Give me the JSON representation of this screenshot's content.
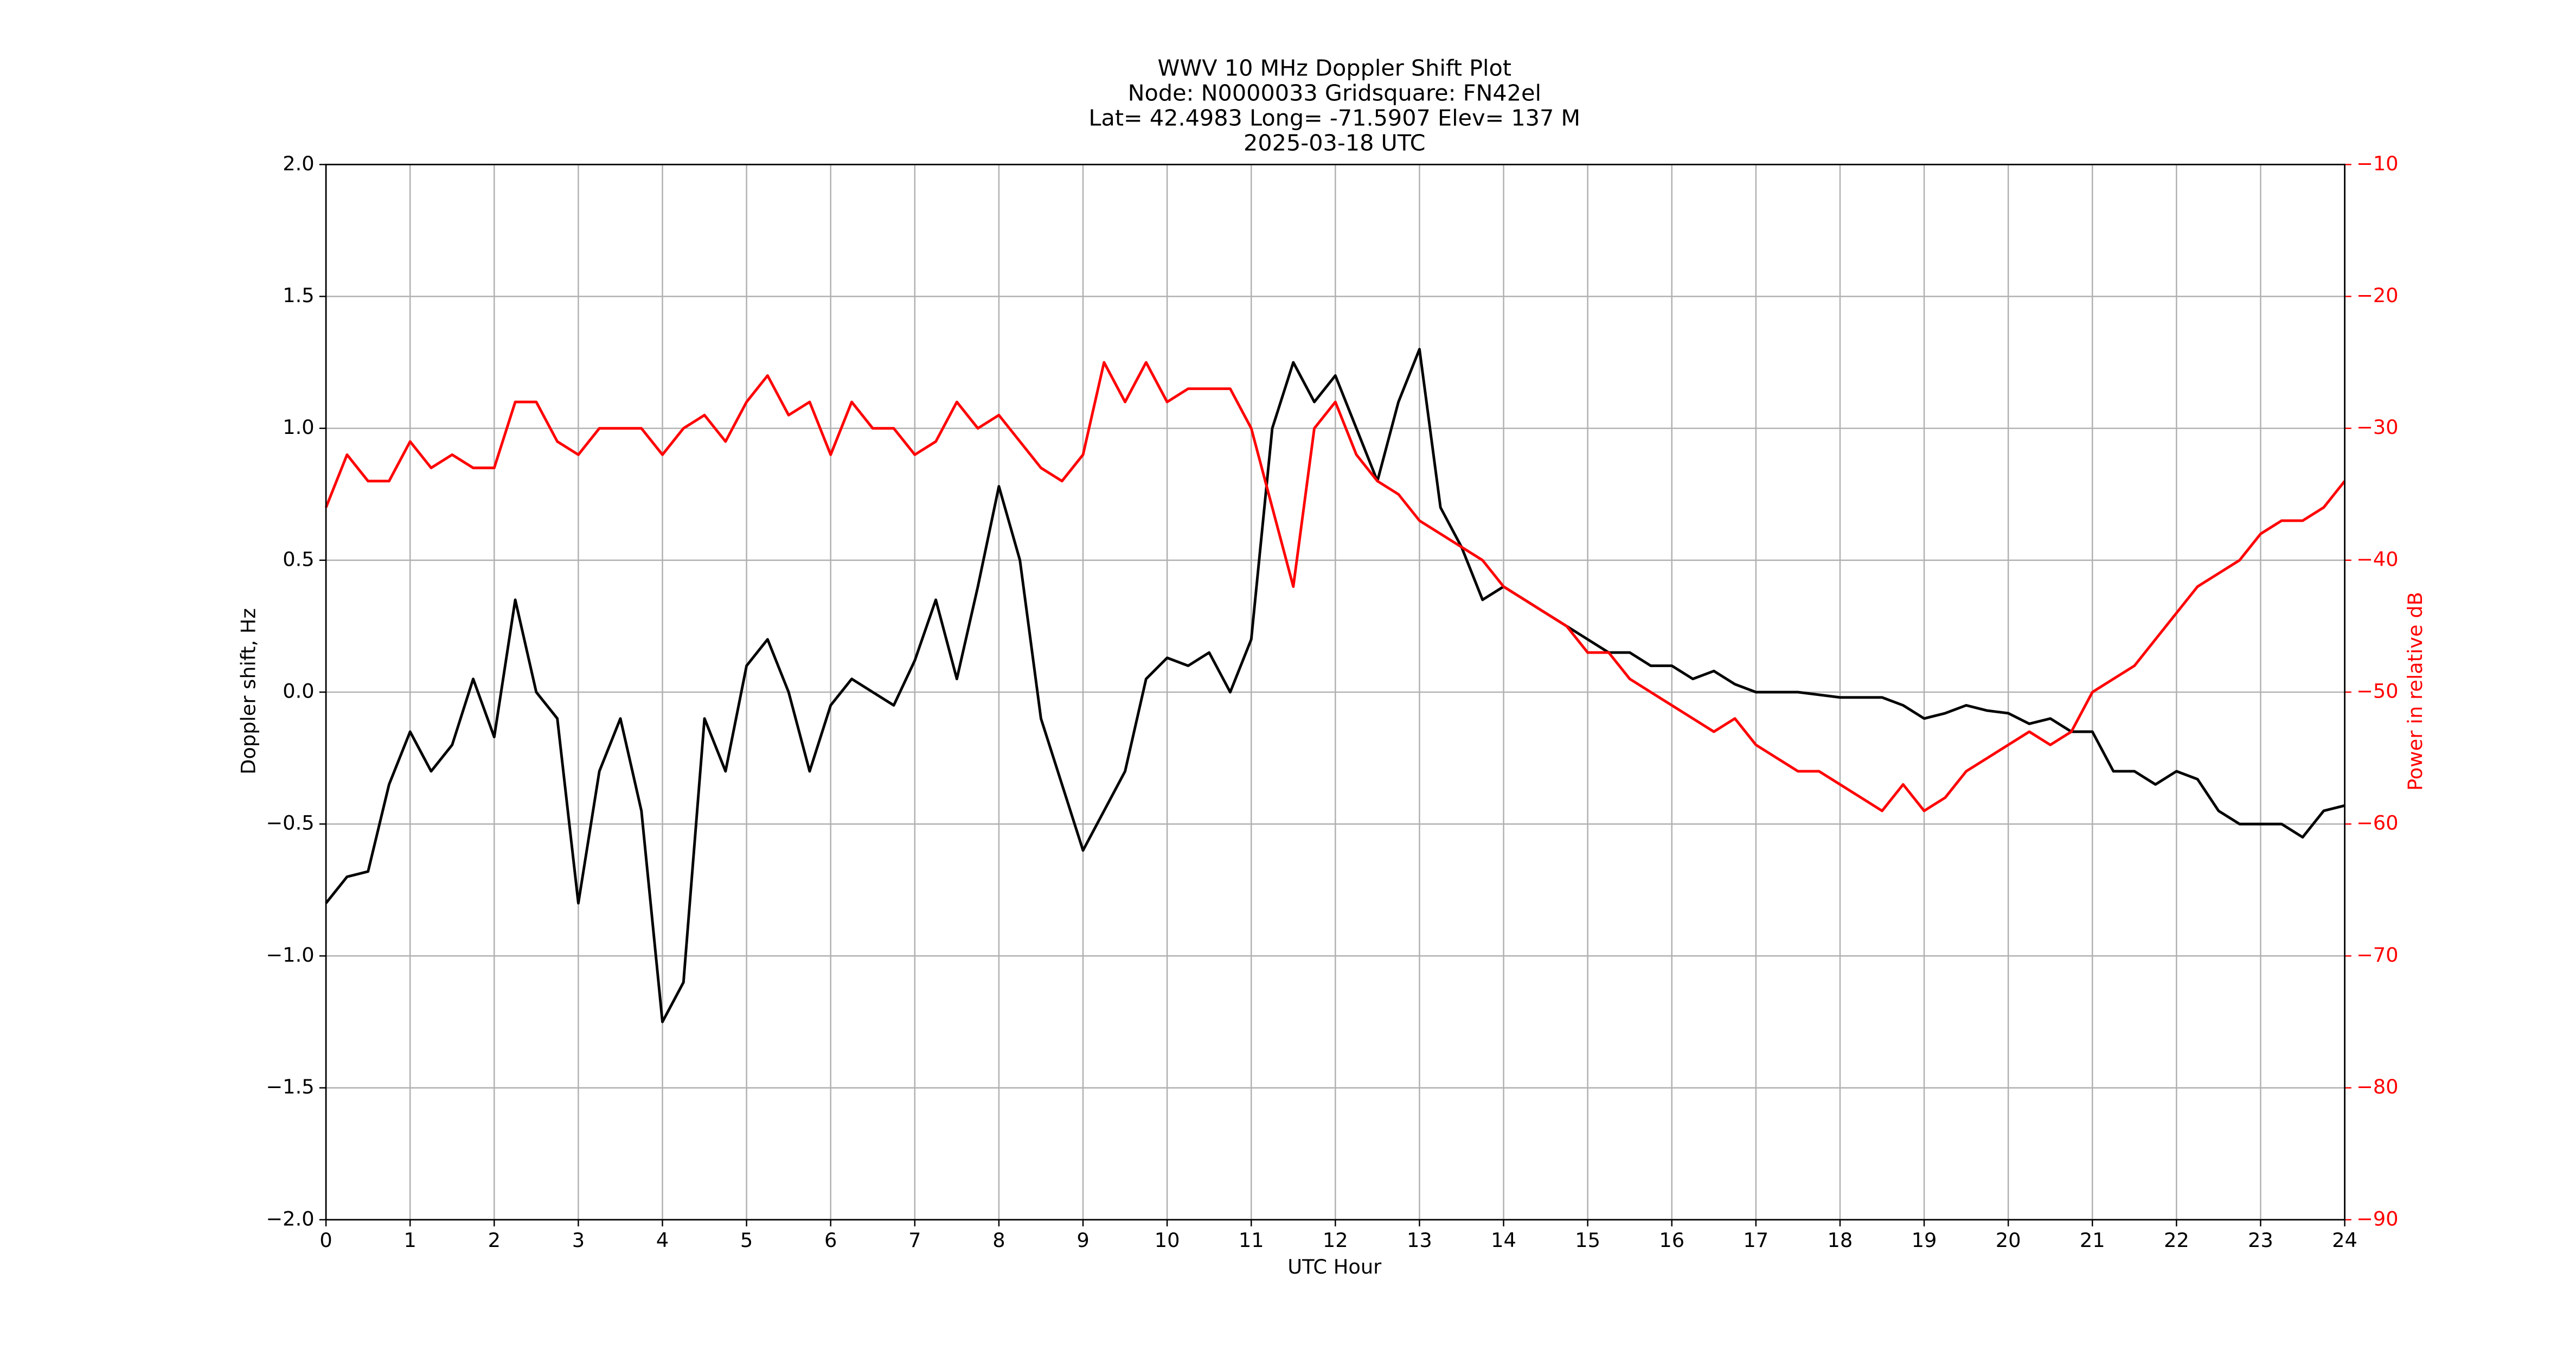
{
  "chart_data": {
    "type": "line",
    "title": [
      "WWV 10 MHz Doppler Shift Plot",
      "Node:  N0000033     Gridsquare:  FN42el",
      "Lat= 42.4983    Long= -71.5907    Elev= 137 M",
      "2025-03-18  UTC"
    ],
    "xlabel": "UTC Hour",
    "ylabel": "Doppler shift, Hz",
    "y2label": "Power in relative dB",
    "grid": true,
    "x": [
      0,
      0.25,
      0.5,
      0.75,
      1,
      1.25,
      1.5,
      1.75,
      2,
      2.25,
      2.5,
      2.75,
      3,
      3.25,
      3.5,
      3.75,
      4,
      4.25,
      4.5,
      4.75,
      5,
      5.25,
      5.5,
      5.75,
      6,
      6.25,
      6.5,
      6.75,
      7,
      7.25,
      7.5,
      7.75,
      8,
      8.25,
      8.5,
      8.75,
      9,
      9.25,
      9.5,
      9.75,
      10,
      10.25,
      10.5,
      10.75,
      11,
      11.25,
      11.5,
      11.75,
      12,
      12.25,
      12.5,
      12.75,
      13,
      13.25,
      13.5,
      13.75,
      14,
      14.25,
      14.5,
      14.75,
      15,
      15.25,
      15.5,
      15.75,
      16,
      16.25,
      16.5,
      16.75,
      17,
      17.25,
      17.5,
      17.75,
      18,
      18.25,
      18.5,
      18.75,
      19,
      19.25,
      19.5,
      19.75,
      20,
      20.25,
      20.5,
      20.75,
      21,
      21.25,
      21.5,
      21.75,
      22,
      22.25,
      22.5,
      22.75,
      23,
      23.25,
      23.5,
      23.75,
      24
    ],
    "series": [
      {
        "color": "#000000",
        "axis": "y",
        "values": [
          -0.8,
          -0.7,
          -0.68,
          -0.35,
          -0.15,
          -0.3,
          -0.2,
          0.05,
          -0.17,
          0.35,
          0.0,
          -0.1,
          -0.8,
          -0.3,
          -0.1,
          -0.45,
          -1.25,
          -1.1,
          -0.1,
          -0.3,
          0.1,
          0.2,
          0.0,
          -0.3,
          -0.05,
          0.05,
          0.0,
          -0.05,
          0.12,
          0.35,
          0.05,
          0.4,
          0.78,
          0.5,
          -0.1,
          -0.35,
          -0.6,
          -0.45,
          -0.3,
          0.05,
          0.13,
          0.1,
          0.15,
          0.0,
          0.2,
          1.0,
          1.25,
          1.1,
          1.2,
          1.0,
          0.8,
          1.1,
          1.3,
          0.7,
          0.55,
          0.35,
          0.4,
          0.35,
          0.3,
          0.25,
          0.2,
          0.15,
          0.15,
          0.1,
          0.1,
          0.05,
          0.08,
          0.03,
          0.0,
          0.0,
          0.0,
          -0.01,
          -0.02,
          -0.02,
          -0.02,
          -0.05,
          -0.1,
          -0.08,
          -0.05,
          -0.07,
          -0.08,
          -0.12,
          -0.1,
          -0.15,
          -0.15,
          -0.3,
          -0.3,
          -0.35,
          -0.3,
          -0.33,
          -0.45,
          -0.5,
          -0.5,
          -0.5,
          -0.55,
          -0.45,
          -0.43
        ]
      },
      {
        "color": "#ff0000",
        "axis": "y2",
        "values": [
          -36,
          -32,
          -34,
          -34,
          -31,
          -33,
          -32,
          -33,
          -33,
          -28,
          -28,
          -31,
          -32,
          -30,
          -30,
          -30,
          -32,
          -30,
          -29,
          -31,
          -28,
          -26,
          -29,
          -28,
          -32,
          -28,
          -30,
          -30,
          -32,
          -31,
          -28,
          -30,
          -29,
          -31,
          -33,
          -34,
          -32,
          -25,
          -28,
          -25,
          -28,
          -27,
          -27,
          -27,
          -30,
          -36,
          -42,
          -30,
          -28,
          -32,
          -34,
          -35,
          -37,
          -38,
          -39,
          -40,
          -42,
          -43,
          -44,
          -45,
          -47,
          -47,
          -49,
          -50,
          -51,
          -52,
          -53,
          -52,
          -54,
          -55,
          -56,
          -56,
          -57,
          -58,
          -59,
          -57,
          -59,
          -58,
          -56,
          -55,
          -54,
          -53,
          -54,
          -53,
          -50,
          -49,
          -48,
          -46,
          -44,
          -42,
          -41,
          -40,
          -38,
          -37,
          -37,
          -36,
          -34
        ]
      }
    ],
    "xlim": [
      0,
      24
    ],
    "xticks": [
      0,
      1,
      2,
      3,
      4,
      5,
      6,
      7,
      8,
      9,
      10,
      11,
      12,
      13,
      14,
      15,
      16,
      17,
      18,
      19,
      20,
      21,
      22,
      23,
      24
    ],
    "ylim": [
      -2,
      2
    ],
    "yticks": [
      {
        "value": -2,
        "label": "−2.0"
      },
      {
        "value": -1.5,
        "label": "−1.5"
      },
      {
        "value": -1,
        "label": "−1.0"
      },
      {
        "value": -0.5,
        "label": "−0.5"
      },
      {
        "value": 0,
        "label": "0.0"
      },
      {
        "value": 0.5,
        "label": "0.5"
      },
      {
        "value": 1,
        "label": "1.0"
      },
      {
        "value": 1.5,
        "label": "1.5"
      },
      {
        "value": 2,
        "label": "2.0"
      }
    ],
    "y2lim": [
      -90,
      -10
    ],
    "y2ticks": [
      {
        "value": -90,
        "label": "−90"
      },
      {
        "value": -80,
        "label": "−80"
      },
      {
        "value": -70,
        "label": "−70"
      },
      {
        "value": -60,
        "label": "−60"
      },
      {
        "value": -50,
        "label": "−50"
      },
      {
        "value": -40,
        "label": "−40"
      },
      {
        "value": -30,
        "label": "−30"
      },
      {
        "value": -20,
        "label": "−20"
      },
      {
        "value": -10,
        "label": "−10"
      }
    ],
    "y2color": "#ff0000"
  }
}
